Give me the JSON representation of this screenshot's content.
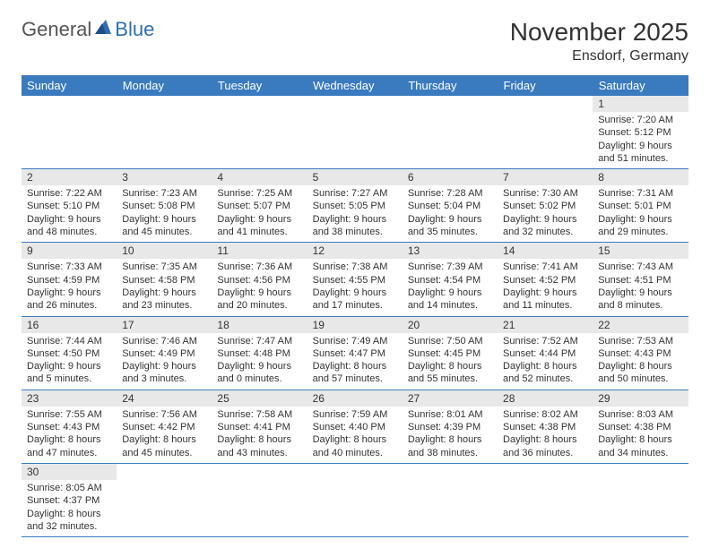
{
  "logo": {
    "general": "General",
    "blue": "Blue"
  },
  "title": "November 2025",
  "location": "Ensdorf, Germany",
  "day_headers": [
    "Sunday",
    "Monday",
    "Tuesday",
    "Wednesday",
    "Thursday",
    "Friday",
    "Saturday"
  ],
  "colors": {
    "header_bg": "#3a7abf",
    "header_text": "#ffffff",
    "daynum_bg": "#e8e8e8",
    "row_divider": "#3a7abf",
    "logo_blue": "#2f6fb0"
  },
  "typography": {
    "title_fontsize": 28,
    "location_fontsize": 16,
    "header_fontsize": 13,
    "daynum_fontsize": 12,
    "cell_fontsize": 11
  },
  "weeks": [
    {
      "nums": [
        "",
        "",
        "",
        "",
        "",
        "",
        "1"
      ],
      "cells": [
        null,
        null,
        null,
        null,
        null,
        null,
        {
          "sunrise": "Sunrise: 7:20 AM",
          "sunset": "Sunset: 5:12 PM",
          "day1": "Daylight: 9 hours",
          "day2": "and 51 minutes."
        }
      ]
    },
    {
      "nums": [
        "2",
        "3",
        "4",
        "5",
        "6",
        "7",
        "8"
      ],
      "cells": [
        {
          "sunrise": "Sunrise: 7:22 AM",
          "sunset": "Sunset: 5:10 PM",
          "day1": "Daylight: 9 hours",
          "day2": "and 48 minutes."
        },
        {
          "sunrise": "Sunrise: 7:23 AM",
          "sunset": "Sunset: 5:08 PM",
          "day1": "Daylight: 9 hours",
          "day2": "and 45 minutes."
        },
        {
          "sunrise": "Sunrise: 7:25 AM",
          "sunset": "Sunset: 5:07 PM",
          "day1": "Daylight: 9 hours",
          "day2": "and 41 minutes."
        },
        {
          "sunrise": "Sunrise: 7:27 AM",
          "sunset": "Sunset: 5:05 PM",
          "day1": "Daylight: 9 hours",
          "day2": "and 38 minutes."
        },
        {
          "sunrise": "Sunrise: 7:28 AM",
          "sunset": "Sunset: 5:04 PM",
          "day1": "Daylight: 9 hours",
          "day2": "and 35 minutes."
        },
        {
          "sunrise": "Sunrise: 7:30 AM",
          "sunset": "Sunset: 5:02 PM",
          "day1": "Daylight: 9 hours",
          "day2": "and 32 minutes."
        },
        {
          "sunrise": "Sunrise: 7:31 AM",
          "sunset": "Sunset: 5:01 PM",
          "day1": "Daylight: 9 hours",
          "day2": "and 29 minutes."
        }
      ]
    },
    {
      "nums": [
        "9",
        "10",
        "11",
        "12",
        "13",
        "14",
        "15"
      ],
      "cells": [
        {
          "sunrise": "Sunrise: 7:33 AM",
          "sunset": "Sunset: 4:59 PM",
          "day1": "Daylight: 9 hours",
          "day2": "and 26 minutes."
        },
        {
          "sunrise": "Sunrise: 7:35 AM",
          "sunset": "Sunset: 4:58 PM",
          "day1": "Daylight: 9 hours",
          "day2": "and 23 minutes."
        },
        {
          "sunrise": "Sunrise: 7:36 AM",
          "sunset": "Sunset: 4:56 PM",
          "day1": "Daylight: 9 hours",
          "day2": "and 20 minutes."
        },
        {
          "sunrise": "Sunrise: 7:38 AM",
          "sunset": "Sunset: 4:55 PM",
          "day1": "Daylight: 9 hours",
          "day2": "and 17 minutes."
        },
        {
          "sunrise": "Sunrise: 7:39 AM",
          "sunset": "Sunset: 4:54 PM",
          "day1": "Daylight: 9 hours",
          "day2": "and 14 minutes."
        },
        {
          "sunrise": "Sunrise: 7:41 AM",
          "sunset": "Sunset: 4:52 PM",
          "day1": "Daylight: 9 hours",
          "day2": "and 11 minutes."
        },
        {
          "sunrise": "Sunrise: 7:43 AM",
          "sunset": "Sunset: 4:51 PM",
          "day1": "Daylight: 9 hours",
          "day2": "and 8 minutes."
        }
      ]
    },
    {
      "nums": [
        "16",
        "17",
        "18",
        "19",
        "20",
        "21",
        "22"
      ],
      "cells": [
        {
          "sunrise": "Sunrise: 7:44 AM",
          "sunset": "Sunset: 4:50 PM",
          "day1": "Daylight: 9 hours",
          "day2": "and 5 minutes."
        },
        {
          "sunrise": "Sunrise: 7:46 AM",
          "sunset": "Sunset: 4:49 PM",
          "day1": "Daylight: 9 hours",
          "day2": "and 3 minutes."
        },
        {
          "sunrise": "Sunrise: 7:47 AM",
          "sunset": "Sunset: 4:48 PM",
          "day1": "Daylight: 9 hours",
          "day2": "and 0 minutes."
        },
        {
          "sunrise": "Sunrise: 7:49 AM",
          "sunset": "Sunset: 4:47 PM",
          "day1": "Daylight: 8 hours",
          "day2": "and 57 minutes."
        },
        {
          "sunrise": "Sunrise: 7:50 AM",
          "sunset": "Sunset: 4:45 PM",
          "day1": "Daylight: 8 hours",
          "day2": "and 55 minutes."
        },
        {
          "sunrise": "Sunrise: 7:52 AM",
          "sunset": "Sunset: 4:44 PM",
          "day1": "Daylight: 8 hours",
          "day2": "and 52 minutes."
        },
        {
          "sunrise": "Sunrise: 7:53 AM",
          "sunset": "Sunset: 4:43 PM",
          "day1": "Daylight: 8 hours",
          "day2": "and 50 minutes."
        }
      ]
    },
    {
      "nums": [
        "23",
        "24",
        "25",
        "26",
        "27",
        "28",
        "29"
      ],
      "cells": [
        {
          "sunrise": "Sunrise: 7:55 AM",
          "sunset": "Sunset: 4:43 PM",
          "day1": "Daylight: 8 hours",
          "day2": "and 47 minutes."
        },
        {
          "sunrise": "Sunrise: 7:56 AM",
          "sunset": "Sunset: 4:42 PM",
          "day1": "Daylight: 8 hours",
          "day2": "and 45 minutes."
        },
        {
          "sunrise": "Sunrise: 7:58 AM",
          "sunset": "Sunset: 4:41 PM",
          "day1": "Daylight: 8 hours",
          "day2": "and 43 minutes."
        },
        {
          "sunrise": "Sunrise: 7:59 AM",
          "sunset": "Sunset: 4:40 PM",
          "day1": "Daylight: 8 hours",
          "day2": "and 40 minutes."
        },
        {
          "sunrise": "Sunrise: 8:01 AM",
          "sunset": "Sunset: 4:39 PM",
          "day1": "Daylight: 8 hours",
          "day2": "and 38 minutes."
        },
        {
          "sunrise": "Sunrise: 8:02 AM",
          "sunset": "Sunset: 4:38 PM",
          "day1": "Daylight: 8 hours",
          "day2": "and 36 minutes."
        },
        {
          "sunrise": "Sunrise: 8:03 AM",
          "sunset": "Sunset: 4:38 PM",
          "day1": "Daylight: 8 hours",
          "day2": "and 34 minutes."
        }
      ]
    },
    {
      "nums": [
        "30",
        "",
        "",
        "",
        "",
        "",
        ""
      ],
      "cells": [
        {
          "sunrise": "Sunrise: 8:05 AM",
          "sunset": "Sunset: 4:37 PM",
          "day1": "Daylight: 8 hours",
          "day2": "and 32 minutes."
        },
        null,
        null,
        null,
        null,
        null,
        null
      ]
    }
  ]
}
